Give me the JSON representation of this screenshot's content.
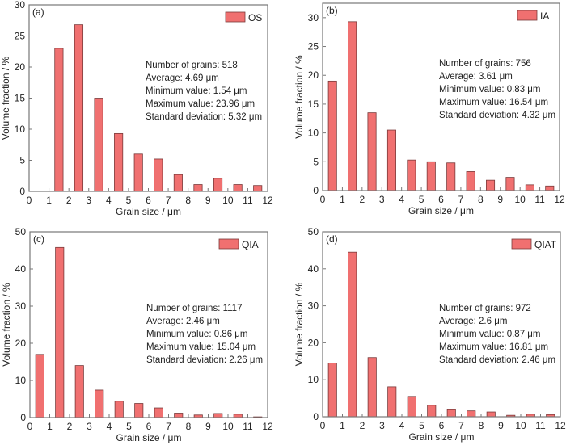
{
  "chart_data": [
    {
      "type": "bar",
      "panel_label": "(a)",
      "legend": "OS",
      "xlabel": "Grain size / μm",
      "ylabel": "Volume fraction / %",
      "xlim": [
        0,
        12
      ],
      "ylim": [
        0,
        30
      ],
      "xticks": [
        0,
        1,
        2,
        3,
        4,
        5,
        6,
        7,
        8,
        9,
        10,
        11,
        12
      ],
      "yticks": [
        0,
        5,
        10,
        15,
        20,
        25,
        30
      ],
      "x": [
        1.5,
        2.5,
        3.5,
        4.5,
        5.5,
        6.5,
        7.5,
        8.5,
        9.5,
        10.5,
        11.5
      ],
      "values": [
        23.0,
        26.8,
        15.0,
        9.3,
        6.0,
        5.2,
        2.7,
        1.1,
        2.1,
        1.1,
        0.95
      ],
      "stats": [
        "Number of grains: 518",
        "Average: 4.69 μm",
        "Minimum value: 1.54 μm",
        "Maximum value: 23.96 μm",
        "Standard deviation: 5.32 μm"
      ]
    },
    {
      "type": "bar",
      "panel_label": "(b)",
      "legend": "IA",
      "xlabel": "Grain size / μm",
      "ylabel": "Volume fraction / %",
      "xlim": [
        0,
        12
      ],
      "ylim": [
        0,
        32.5
      ],
      "xticks": [
        0,
        1,
        2,
        3,
        4,
        5,
        6,
        7,
        8,
        9,
        10,
        11,
        12
      ],
      "yticks": [
        0,
        5,
        10,
        15,
        20,
        25,
        30
      ],
      "x": [
        0.5,
        1.5,
        2.5,
        3.5,
        4.5,
        5.5,
        6.5,
        7.5,
        8.5,
        9.5,
        10.5,
        11.5
      ],
      "values": [
        19.0,
        29.3,
        13.5,
        10.5,
        5.3,
        5.0,
        4.8,
        3.3,
        1.8,
        2.3,
        1.0,
        0.8
      ],
      "stats": [
        "Number of grains: 756",
        "Average: 3.61 μm",
        "Minimum value: 0.83 μm",
        "Maximum value: 16.54 μm",
        "Standard deviation: 4.32 μm"
      ]
    },
    {
      "type": "bar",
      "panel_label": "(c)",
      "legend": "QIA",
      "xlabel": "Grain size / μm",
      "ylabel": "Volume fraction / %",
      "xlim": [
        0,
        12
      ],
      "ylim": [
        0,
        50
      ],
      "xticks": [
        0,
        1,
        2,
        3,
        4,
        5,
        6,
        7,
        8,
        9,
        10,
        11,
        12
      ],
      "yticks": [
        0,
        10,
        20,
        30,
        40,
        50
      ],
      "x": [
        0.5,
        1.5,
        2.5,
        3.5,
        4.5,
        5.5,
        6.5,
        7.5,
        8.5,
        9.5,
        10.5,
        11.5
      ],
      "values": [
        17.0,
        45.8,
        14.0,
        7.4,
        4.4,
        3.8,
        2.6,
        1.2,
        0.7,
        1.1,
        0.9,
        0.2
      ],
      "stats": [
        "Number of grains: 1117",
        "Average: 2.46 μm",
        "Minimum value: 0.86 μm",
        "Maximum value: 15.04 μm",
        "Standard deviation: 2.26 μm"
      ]
    },
    {
      "type": "bar",
      "panel_label": "(d)",
      "legend": "QIAT",
      "xlabel": "Grain size / μm",
      "ylabel": "Volume fraction / %",
      "xlim": [
        0,
        12
      ],
      "ylim": [
        0,
        50
      ],
      "xticks": [
        0,
        1,
        2,
        3,
        4,
        5,
        6,
        7,
        8,
        9,
        10,
        11,
        12
      ],
      "yticks": [
        0,
        10,
        20,
        30,
        40,
        50
      ],
      "x": [
        0.5,
        1.5,
        2.5,
        3.5,
        4.5,
        5.5,
        6.5,
        7.5,
        8.5,
        9.5,
        10.5,
        11.5
      ],
      "values": [
        14.5,
        44.5,
        16.0,
        8.1,
        5.5,
        3.1,
        1.9,
        1.6,
        1.3,
        0.4,
        0.7,
        0.6
      ],
      "stats": [
        "Number of grains: 972",
        "Average: 2.6 μm",
        "Minimum value: 0.87 μm",
        "Maximum value: 16.81 μm",
        "Standard deviation: 2.46 μm"
      ]
    }
  ],
  "colors": {
    "bar_fill": "#f07070",
    "bar_stroke": "#7a3a3a",
    "axis": "#777777",
    "text": "#222222"
  }
}
